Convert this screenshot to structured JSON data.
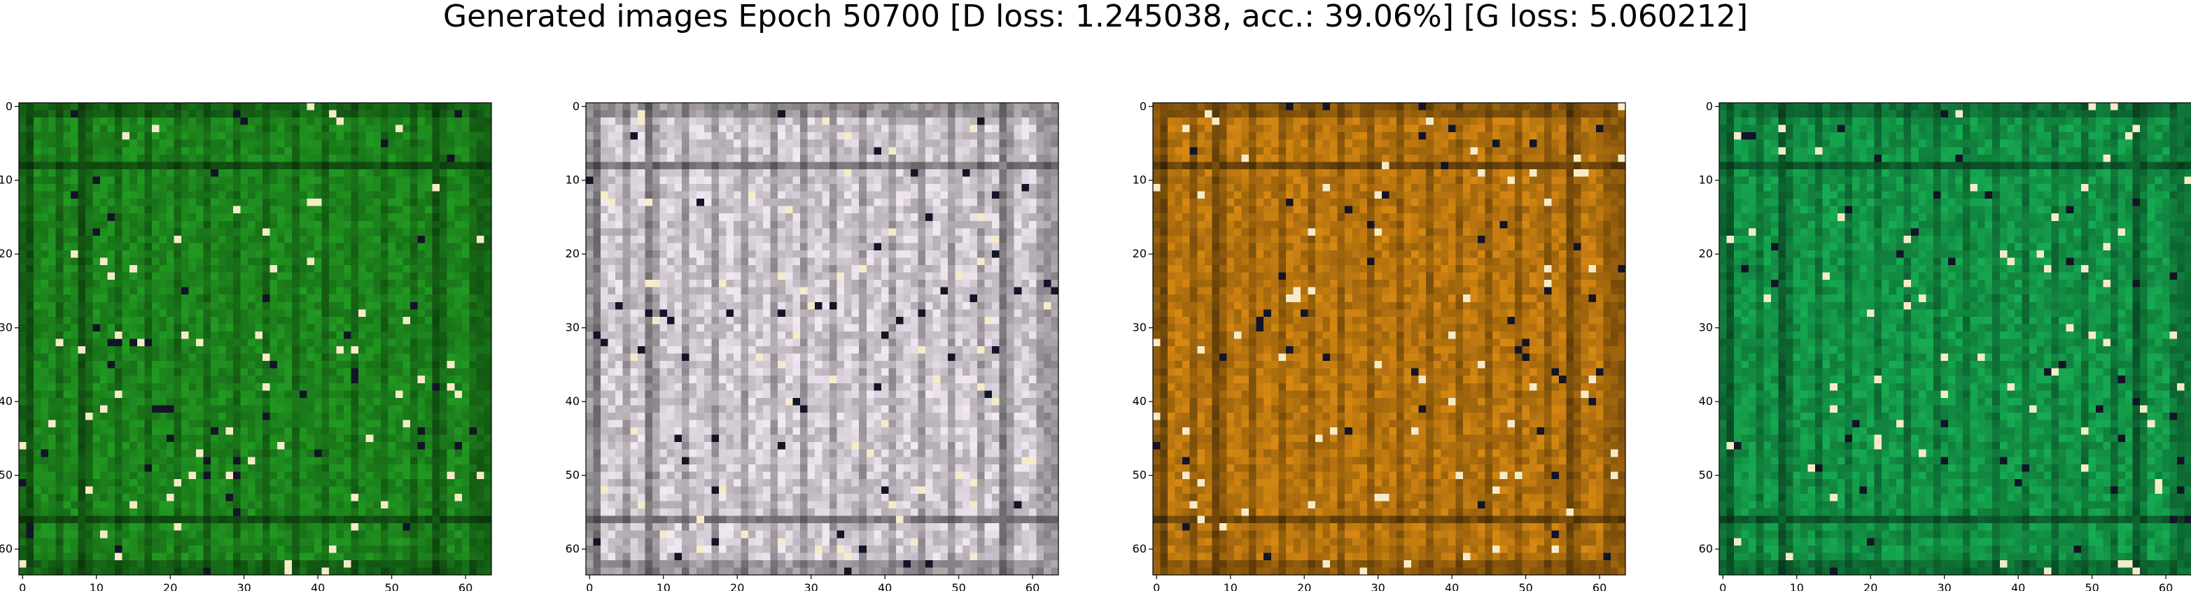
{
  "title": "Generated images Epoch 50700 [D loss: 1.245038, acc.: 39.06%] [G loss: 5.060212]",
  "chart_data": [
    {
      "type": "heatmap",
      "content": "generated image 64x64 RGB",
      "dominant_color": "#1e8a1e",
      "xlim": [
        0,
        63
      ],
      "ylim": [
        63,
        0
      ],
      "xticks": [
        0,
        10,
        20,
        30,
        40,
        50,
        60
      ],
      "yticks": [
        0,
        10,
        20,
        30,
        40,
        50,
        60
      ]
    },
    {
      "type": "heatmap",
      "content": "generated image 64x64 RGB",
      "dominant_color": "#d8d0d8",
      "xlim": [
        0,
        63
      ],
      "ylim": [
        63,
        0
      ],
      "xticks": [
        0,
        10,
        20,
        30,
        40,
        50,
        60
      ],
      "yticks": [
        0,
        10,
        20,
        30,
        40,
        50,
        60
      ]
    },
    {
      "type": "heatmap",
      "content": "generated image 64x64 RGB",
      "dominant_color": "#c07a10",
      "xlim": [
        0,
        63
      ],
      "ylim": [
        63,
        0
      ],
      "xticks": [
        0,
        10,
        20,
        30,
        40,
        50,
        60
      ],
      "yticks": [
        0,
        10,
        20,
        30,
        40,
        50,
        60
      ]
    },
    {
      "type": "heatmap",
      "content": "generated image 64x64 RGB",
      "dominant_color": "#149a4a",
      "xlim": [
        0,
        63
      ],
      "ylim": [
        63,
        0
      ],
      "xticks": [
        0,
        10,
        20,
        30,
        40,
        50,
        60
      ],
      "yticks": [
        0,
        10,
        20,
        30,
        40,
        50,
        60
      ]
    }
  ]
}
